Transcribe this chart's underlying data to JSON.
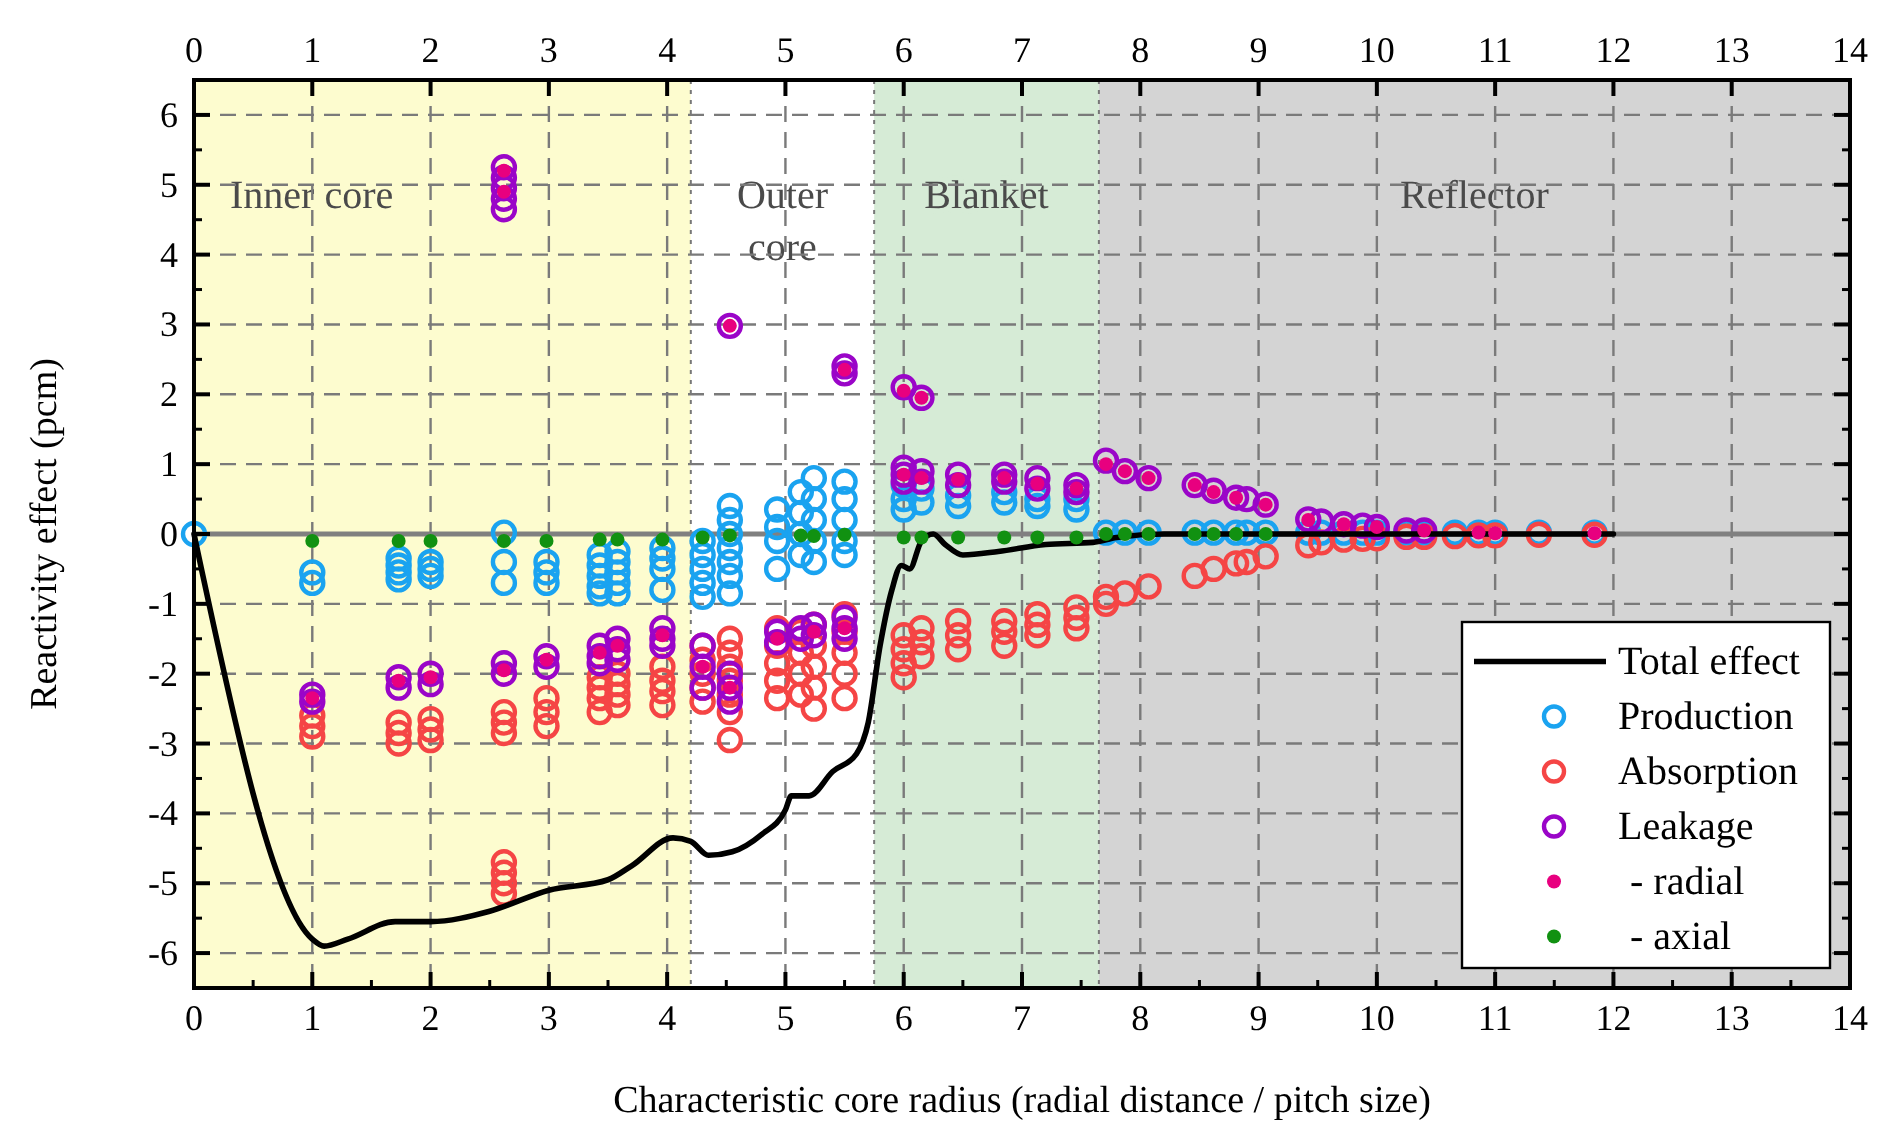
{
  "chart_data": {
    "type": "scatter",
    "xlabel": "Characteristic core radius (radial distance / pitch size)",
    "ylabel": "Reactivity effect (pcm)",
    "xlim": [
      0,
      14
    ],
    "xticks": [
      0,
      1,
      2,
      3,
      4,
      5,
      6,
      7,
      8,
      9,
      10,
      11,
      12,
      13,
      14
    ],
    "x2lim": [
      0,
      14
    ],
    "x2ticks": [
      0,
      1,
      2,
      3,
      4,
      5,
      6,
      7,
      8,
      9,
      10,
      11,
      12,
      13,
      14
    ],
    "ylim": [
      -6.5,
      6.5
    ],
    "yticks": [
      -6,
      -5,
      -4,
      -3,
      -2,
      -1,
      0,
      1,
      2,
      3,
      4,
      5,
      6
    ],
    "grid": true,
    "legend": "bottom right",
    "bands": [
      {
        "axis": "x",
        "from": 0,
        "to": 4.2,
        "label": "Inner core",
        "color": "#fdfccf"
      },
      {
        "axis": "x",
        "from": 4.2,
        "to": 5.75,
        "label": "Outer core",
        "color": "#ffffff"
      },
      {
        "axis": "x",
        "from": 5.75,
        "to": 7.65,
        "label": "Blanket",
        "color": "#d6ebd6"
      },
      {
        "axis": "x",
        "from": 7.65,
        "to": 14,
        "label": "Reflector",
        "color": "#d4d4d4"
      }
    ],
    "ref_lines": [
      {
        "axis": "y",
        "value": 0,
        "color": "#808080"
      }
    ],
    "series": [
      {
        "name": "Total effect",
        "type": "line",
        "color": "#000000",
        "marker": "none",
        "line_style": "solid",
        "x": [
          0,
          1.0,
          1.1,
          1.3,
          1.7,
          2.0,
          2.5,
          3.0,
          3.5,
          3.7,
          4.05,
          4.2,
          4.35,
          4.55,
          4.8,
          5.0,
          5.05,
          5.2,
          5.4,
          5.6,
          5.7,
          5.8,
          5.9,
          5.98,
          6.05,
          6.15,
          6.25,
          6.35,
          6.5,
          6.8,
          7.2,
          7.6,
          7.8,
          8.2,
          12
        ],
        "values": [
          0,
          -5.8,
          -5.9,
          -5.8,
          -5.55,
          -5.55,
          -5.4,
          -5.1,
          -4.95,
          -4.75,
          -4.35,
          -4.4,
          -4.6,
          -4.55,
          -4.3,
          -3.95,
          -3.75,
          -3.75,
          -3.4,
          -3.15,
          -2.7,
          -1.6,
          -0.8,
          -0.45,
          -0.5,
          -0.1,
          0.0,
          -0.15,
          -0.3,
          -0.25,
          -0.15,
          -0.12,
          -0.05,
          0,
          0
        ]
      },
      {
        "name": "Production",
        "color": "#1aa3f0",
        "marker": "circle",
        "x": [
          0,
          1,
          1,
          1.73,
          1.73,
          1.73,
          1.73,
          2,
          2,
          2,
          2.62,
          2.62,
          2.62,
          2.98,
          2.98,
          2.98,
          3.43,
          3.43,
          3.43,
          3.43,
          3.43,
          3.58,
          3.58,
          3.58,
          3.58,
          3.58,
          3.96,
          3.96,
          3.96,
          3.96,
          4.3,
          4.3,
          4.3,
          4.3,
          4.3,
          4.53,
          4.53,
          4.53,
          4.53,
          4.53,
          4.53,
          4.53,
          4.93,
          4.93,
          4.93,
          4.93,
          5.13,
          5.13,
          5.13,
          5.13,
          5.24,
          5.24,
          5.24,
          5.24,
          5.24,
          5.5,
          5.5,
          5.5,
          5.5,
          5.5,
          6.0,
          6.0,
          6.0,
          6.15,
          6.15,
          6.46,
          6.46,
          6.85,
          6.85,
          7.13,
          7.13,
          7.46,
          7.46,
          7.71,
          7.87,
          8.07,
          8.46,
          8.62,
          8.81,
          8.9,
          9.06,
          9.42,
          9.53,
          9.72,
          9.88,
          10.0,
          10.25,
          10.4,
          10.66,
          10.86,
          11.0,
          11.37,
          11.84
        ],
        "values": [
          0,
          -0.55,
          -0.7,
          -0.35,
          -0.45,
          -0.55,
          -0.65,
          -0.4,
          -0.5,
          -0.6,
          0.02,
          -0.4,
          -0.7,
          -0.4,
          -0.55,
          -0.7,
          -0.3,
          -0.45,
          -0.6,
          -0.75,
          -0.85,
          -0.25,
          -0.4,
          -0.55,
          -0.7,
          -0.85,
          -0.2,
          -0.35,
          -0.5,
          -0.8,
          -0.1,
          -0.3,
          -0.5,
          -0.7,
          -0.9,
          0.4,
          0.2,
          0.0,
          -0.2,
          -0.4,
          -0.6,
          -0.85,
          0.35,
          0.1,
          -0.1,
          -0.5,
          0.6,
          0.3,
          0.0,
          -0.3,
          0.8,
          0.5,
          0.2,
          -0.1,
          -0.4,
          0.75,
          0.5,
          0.2,
          -0.1,
          -0.3,
          0.7,
          0.5,
          0.35,
          0.65,
          0.45,
          0.55,
          0.4,
          0.6,
          0.45,
          0.5,
          0.4,
          0.5,
          0.35,
          0.02,
          0.02,
          0.02,
          0.02,
          0.02,
          0.02,
          0.02,
          0.02,
          0.02,
          0.02,
          0.02,
          0.02,
          0.02,
          0.02,
          0.02,
          0.02,
          0.02,
          0.02,
          0.02,
          0.02
        ]
      },
      {
        "name": "Absorption",
        "color": "#f54545",
        "marker": "circle",
        "x": [
          1,
          1,
          1,
          1.73,
          1.73,
          1.73,
          2,
          2,
          2,
          2.62,
          2.62,
          2.62,
          2.62,
          2.62,
          2.62,
          2.62,
          2.98,
          2.98,
          2.98,
          3.43,
          3.43,
          3.43,
          3.43,
          3.58,
          3.58,
          3.58,
          3.58,
          3.96,
          3.96,
          3.96,
          3.96,
          4.3,
          4.3,
          4.3,
          4.3,
          4.3,
          4.53,
          4.53,
          4.53,
          4.53,
          4.53,
          4.53,
          4.53,
          4.93,
          4.93,
          4.93,
          4.93,
          4.93,
          5.13,
          5.13,
          5.13,
          5.13,
          5.24,
          5.24,
          5.24,
          5.24,
          5.24,
          5.5,
          5.5,
          5.5,
          5.5,
          5.5,
          6.0,
          6.0,
          6.0,
          6.0,
          6.15,
          6.15,
          6.15,
          6.46,
          6.46,
          6.46,
          6.85,
          6.85,
          6.85,
          7.13,
          7.13,
          7.13,
          7.46,
          7.46,
          7.46,
          7.71,
          7.71,
          7.87,
          8.07,
          8.46,
          8.62,
          8.81,
          8.9,
          9.06,
          9.42,
          9.53,
          9.72,
          9.88,
          10.0,
          10.25,
          10.4,
          10.66,
          10.86,
          11.0,
          11.37,
          11.84
        ],
        "values": [
          -2.6,
          -2.75,
          -2.9,
          -2.7,
          -2.85,
          -3.0,
          -2.65,
          -2.8,
          -2.95,
          -2.55,
          -2.7,
          -2.85,
          -4.7,
          -4.85,
          -5.0,
          -5.15,
          -2.35,
          -2.55,
          -2.75,
          -2.05,
          -2.2,
          -2.35,
          -2.55,
          -2.0,
          -2.15,
          -2.3,
          -2.45,
          -1.9,
          -2.1,
          -2.25,
          -2.45,
          -1.6,
          -1.8,
          -2.0,
          -2.2,
          -2.4,
          -1.5,
          -1.7,
          -1.9,
          -2.1,
          -2.3,
          -2.55,
          -2.95,
          -1.35,
          -1.6,
          -1.85,
          -2.1,
          -2.35,
          -1.4,
          -1.7,
          -2.0,
          -2.3,
          -1.3,
          -1.6,
          -1.9,
          -2.2,
          -2.5,
          -1.15,
          -1.4,
          -1.7,
          -2.0,
          -2.35,
          -1.45,
          -1.65,
          -1.85,
          -2.05,
          -1.35,
          -1.55,
          -1.75,
          -1.25,
          -1.45,
          -1.65,
          -1.25,
          -1.4,
          -1.6,
          -1.15,
          -1.3,
          -1.45,
          -1.05,
          -1.2,
          -1.35,
          -1.0,
          -0.9,
          -0.85,
          -0.75,
          -0.6,
          -0.5,
          -0.42,
          -0.4,
          -0.32,
          -0.16,
          -0.12,
          -0.08,
          -0.07,
          -0.06,
          -0.04,
          -0.04,
          -0.03,
          -0.02,
          -0.02,
          -0.01,
          -0.01
        ]
      },
      {
        "name": "Leakage",
        "color": "#9a05c8",
        "marker": "circle",
        "x": [
          1,
          1,
          1.73,
          1.73,
          2,
          2,
          2.62,
          2.62,
          2.62,
          2.62,
          2.62,
          2.62,
          2.62,
          2.98,
          2.98,
          3.43,
          3.43,
          3.43,
          3.58,
          3.58,
          3.58,
          3.96,
          3.96,
          3.96,
          4.3,
          4.3,
          4.3,
          4.53,
          4.53,
          4.53,
          4.53,
          4.93,
          4.93,
          5.13,
          5.13,
          5.24,
          5.24,
          5.5,
          5.5,
          5.5,
          5.5,
          5.5,
          6.0,
          6.0,
          6.0,
          6.0,
          6.15,
          6.15,
          6.15,
          6.46,
          6.46,
          6.85,
          6.85,
          7.13,
          7.13,
          7.46,
          7.46,
          7.71,
          7.87,
          8.07,
          8.46,
          8.62,
          8.81,
          8.9,
          9.06,
          9.42,
          9.53,
          9.72,
          9.88,
          10.0,
          10.25,
          10.4
        ],
        "values": [
          -2.3,
          -2.4,
          -2.05,
          -2.2,
          -2.0,
          -2.15,
          -1.85,
          -2.0,
          4.65,
          4.8,
          4.95,
          5.1,
          5.25,
          -1.75,
          -1.9,
          -1.6,
          -1.75,
          -1.85,
          -1.5,
          -1.65,
          -1.8,
          -1.35,
          -1.5,
          -1.6,
          -1.6,
          -1.9,
          -2.2,
          2.98,
          -2.0,
          -2.2,
          -2.4,
          -1.4,
          -1.55,
          -1.35,
          -1.5,
          -1.3,
          -1.45,
          2.4,
          2.3,
          -1.2,
          -1.35,
          -1.5,
          2.1,
          0.95,
          0.85,
          0.75,
          1.95,
          0.9,
          0.75,
          0.85,
          0.7,
          0.85,
          0.75,
          0.8,
          0.65,
          0.7,
          0.6,
          1.05,
          0.9,
          0.8,
          0.7,
          0.62,
          0.52,
          0.5,
          0.42,
          0.21,
          0.18,
          0.14,
          0.12,
          0.1,
          0.05,
          0.05
        ]
      },
      {
        "name": "- radial",
        "color": "#e8007f",
        "marker": "circle",
        "x": [
          1,
          1.73,
          2,
          2.62,
          2.62,
          2.62,
          2.98,
          3.43,
          3.58,
          3.96,
          4.3,
          4.53,
          4.53,
          4.93,
          5.24,
          5.5,
          5.5,
          6.0,
          6.0,
          6.15,
          6.15,
          6.46,
          6.85,
          7.13,
          7.46,
          7.71,
          7.87,
          8.07,
          8.46,
          8.62,
          8.81,
          9.06,
          9.42,
          9.72,
          10.0,
          10.4,
          10.86,
          11.0,
          11.84
        ],
        "values": [
          -2.35,
          -2.1,
          -2.05,
          -1.95,
          5.2,
          4.9,
          -1.8,
          -1.7,
          -1.6,
          -1.45,
          -1.9,
          2.98,
          -2.2,
          -1.5,
          -1.4,
          2.35,
          -1.35,
          2.05,
          0.85,
          1.95,
          0.8,
          0.78,
          0.8,
          0.72,
          0.65,
          1.0,
          0.9,
          0.8,
          0.7,
          0.6,
          0.52,
          0.42,
          0.2,
          0.14,
          0.1,
          0.05,
          0.02,
          0.01,
          0.01
        ]
      },
      {
        "name": "- axial",
        "color": "#119111",
        "marker": "circle",
        "x": [
          1,
          1.73,
          2,
          2.62,
          2.98,
          3.43,
          3.58,
          3.96,
          4.3,
          4.53,
          5.13,
          5.24,
          5.5,
          6.0,
          6.15,
          6.46,
          6.85,
          7.13,
          7.46,
          7.71,
          7.87,
          8.07,
          8.46,
          8.62,
          8.81,
          9.06
        ],
        "values": [
          -0.1,
          -0.1,
          -0.1,
          -0.1,
          -0.1,
          -0.08,
          -0.08,
          -0.08,
          -0.05,
          -0.02,
          -0.02,
          -0.03,
          -0.01,
          -0.05,
          -0.05,
          -0.05,
          -0.05,
          -0.05,
          -0.05,
          0.0,
          0.0,
          0.0,
          0.0,
          0.0,
          0.0,
          0.0
        ]
      }
    ]
  }
}
